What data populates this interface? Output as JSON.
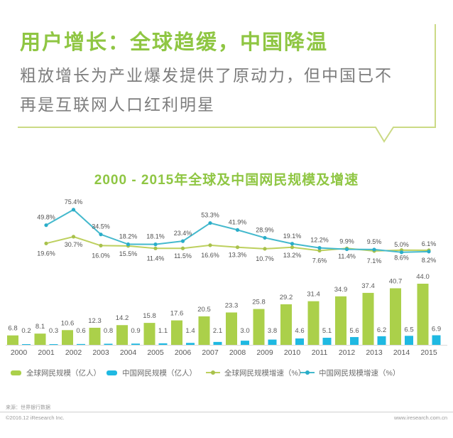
{
  "callout": {
    "title": "用户增长：全球趋缓，中国降温",
    "subtitle": "粗放增长为产业爆发提供了原动力，但中国已不再是互联网人口红利明星",
    "accent_color": "#8fc643",
    "border_color": "#cbda85"
  },
  "chart_data": {
    "type": "bar",
    "subtype": "grouped-bars-with-growth-lines",
    "title": "2000 - 2015年全球及中国网民规模及增速",
    "title_color": "#8fc643",
    "categories": [
      "2000",
      "2001",
      "2002",
      "2003",
      "2004",
      "2005",
      "2006",
      "2007",
      "2008",
      "2009",
      "2010",
      "2011",
      "2012",
      "2013",
      "2014",
      "2015"
    ],
    "series": [
      {
        "name": "全球网民规模（亿人）",
        "type": "bar",
        "color": "#abd04a",
        "values": [
          6.8,
          8.1,
          10.6,
          12.3,
          14.2,
          15.8,
          17.6,
          20.5,
          23.3,
          25.8,
          29.2,
          31.4,
          34.9,
          37.4,
          40.7,
          44.0
        ]
      },
      {
        "name": "中国网民规模（亿人）",
        "type": "bar",
        "color": "#1fb9e2",
        "values": [
          0.2,
          0.3,
          0.6,
          0.8,
          0.9,
          1.1,
          1.4,
          2.1,
          3.0,
          3.8,
          4.6,
          5.1,
          5.6,
          6.2,
          6.5,
          6.9
        ]
      },
      {
        "name": "全球网民规模增速（%）",
        "type": "line",
        "color": "#bdd05e",
        "marker_color": "#a8c14c",
        "start_year": "2001",
        "values": [
          19.6,
          30.7,
          16.0,
          15.5,
          11.4,
          11.5,
          16.6,
          13.3,
          10.7,
          13.2,
          7.6,
          11.4,
          7.1,
          8.6,
          8.2
        ]
      },
      {
        "name": "中国网民规模增速（%）",
        "type": "line",
        "color": "#44b9cd",
        "marker_color": "#2aadc9",
        "start_year": "2001",
        "values": [
          49.8,
          75.4,
          34.5,
          18.2,
          18.1,
          23.4,
          53.3,
          41.9,
          28.9,
          19.1,
          12.2,
          9.9,
          9.5,
          5.0,
          6.1
        ]
      }
    ],
    "bar_unit": "亿人",
    "line_unit": "%",
    "xlabel": "",
    "ylabel": "",
    "grid": false,
    "legend_position": "bottom",
    "bar_ylim": [
      0,
      48
    ],
    "line_ylim": [
      0,
      80
    ],
    "label_color": "#595959",
    "axis_color": "#d9d9d9"
  },
  "footer": {
    "source": "来源：世界银行数据",
    "copyright": "©2016.12 iResearch Inc.",
    "website": "www.iresearch.com.cn"
  }
}
